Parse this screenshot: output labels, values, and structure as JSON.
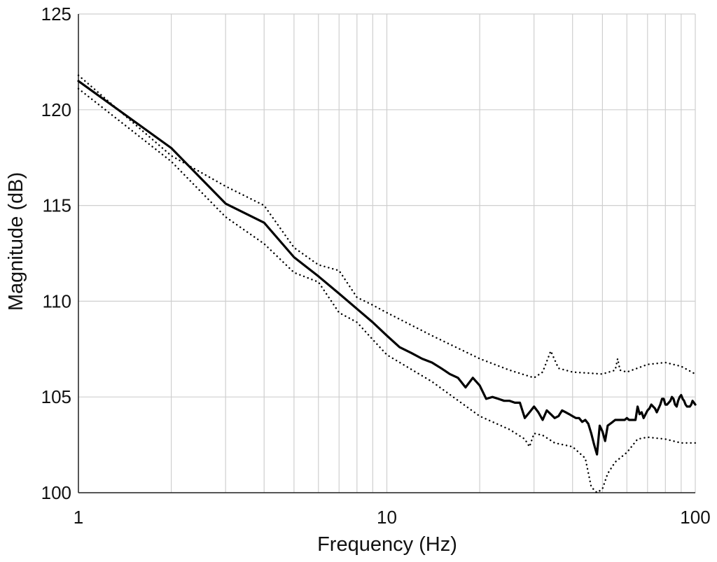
{
  "chart_data": {
    "type": "line",
    "title": "",
    "xlabel": "Frequency (Hz)",
    "ylabel": "Magnitude (dB)",
    "x_scale": "log",
    "xlim": [
      1,
      100
    ],
    "ylim": [
      100,
      125
    ],
    "x_ticks": [
      1,
      10,
      100
    ],
    "x_tick_labels": [
      "1",
      "10",
      "100"
    ],
    "y_ticks": [
      100,
      105,
      110,
      115,
      120,
      125
    ],
    "y_tick_labels": [
      "100",
      "105",
      "110",
      "115",
      "120",
      "125"
    ],
    "grid": true,
    "legend": "none",
    "series": [
      {
        "style": "solid",
        "color": "#000000",
        "x": [
          1,
          2,
          3,
          4,
          5,
          6,
          7,
          8,
          9,
          10,
          11,
          12,
          13,
          14,
          15,
          16,
          17,
          18,
          19,
          20,
          21,
          22,
          23,
          24,
          25,
          26,
          27,
          28,
          29,
          30,
          31,
          32,
          33,
          34,
          35,
          36,
          37,
          38,
          39,
          40,
          41,
          42,
          43,
          44,
          45,
          46,
          47,
          48,
          49,
          50,
          51,
          52,
          53,
          54,
          55,
          56,
          57,
          58,
          59,
          60,
          61,
          62,
          63,
          64,
          65,
          66,
          67,
          68,
          69,
          70,
          71,
          72,
          73,
          74,
          75,
          76,
          77,
          78,
          79,
          80,
          81,
          82,
          83,
          84,
          85,
          86,
          87,
          88,
          89,
          90,
          91,
          92,
          93,
          94,
          95,
          96,
          97,
          98,
          99,
          100
        ],
        "y": [
          121.5,
          118.0,
          115.1,
          114.1,
          112.3,
          111.3,
          110.4,
          109.6,
          108.9,
          108.2,
          107.6,
          107.3,
          107.0,
          106.8,
          106.5,
          106.2,
          106.0,
          105.5,
          106.0,
          105.6,
          104.9,
          105.0,
          104.9,
          104.8,
          104.8,
          104.7,
          104.7,
          103.9,
          104.2,
          104.5,
          104.2,
          103.8,
          104.3,
          104.1,
          103.9,
          104.0,
          104.3,
          104.2,
          104.1,
          104.0,
          103.9,
          103.9,
          103.7,
          103.8,
          103.6,
          103.1,
          102.5,
          102.0,
          103.5,
          103.2,
          102.7,
          103.5,
          103.6,
          103.7,
          103.8,
          103.8,
          103.8,
          103.8,
          103.8,
          103.9,
          103.8,
          103.8,
          103.8,
          103.8,
          104.5,
          104.1,
          104.2,
          103.9,
          104.1,
          104.3,
          104.4,
          104.6,
          104.5,
          104.4,
          104.2,
          104.4,
          104.6,
          104.9,
          104.9,
          104.6,
          104.6,
          104.7,
          104.8,
          105.0,
          104.9,
          104.6,
          104.5,
          104.8,
          105.0,
          105.1,
          104.9,
          104.8,
          104.6,
          104.5,
          104.5,
          104.5,
          104.6,
          104.8,
          104.7,
          104.6
        ]
      },
      {
        "style": "dotted",
        "color": "#000000",
        "x": [
          1,
          2,
          3,
          4,
          5,
          6,
          7,
          8,
          9,
          10,
          14,
          20,
          25,
          30,
          32,
          34,
          36,
          40,
          50,
          55,
          56,
          57,
          60,
          70,
          80,
          90,
          100
        ],
        "y": [
          121.8,
          117.6,
          116.0,
          115.0,
          112.8,
          111.9,
          111.6,
          110.2,
          109.8,
          109.4,
          108.2,
          107.0,
          106.4,
          106.0,
          106.3,
          107.4,
          106.5,
          106.3,
          106.2,
          106.4,
          107.0,
          106.4,
          106.3,
          106.7,
          106.8,
          106.6,
          106.2
        ]
      },
      {
        "style": "dotted",
        "color": "#000000",
        "x": [
          1,
          2,
          3,
          4,
          5,
          6,
          7,
          8,
          9,
          10,
          14,
          20,
          25,
          28,
          29,
          30,
          32,
          35,
          40,
          44,
          46,
          48,
          50,
          52,
          55,
          60,
          65,
          70,
          80,
          90,
          100
        ],
        "y": [
          121.1,
          117.3,
          114.4,
          113.0,
          111.5,
          111.0,
          109.4,
          108.9,
          108.0,
          107.2,
          105.8,
          104.0,
          103.3,
          102.8,
          102.4,
          103.1,
          103.0,
          102.6,
          102.4,
          101.8,
          100.3,
          100.0,
          100.2,
          101.0,
          101.6,
          102.1,
          102.8,
          102.9,
          102.8,
          102.6,
          102.6
        ]
      }
    ]
  }
}
